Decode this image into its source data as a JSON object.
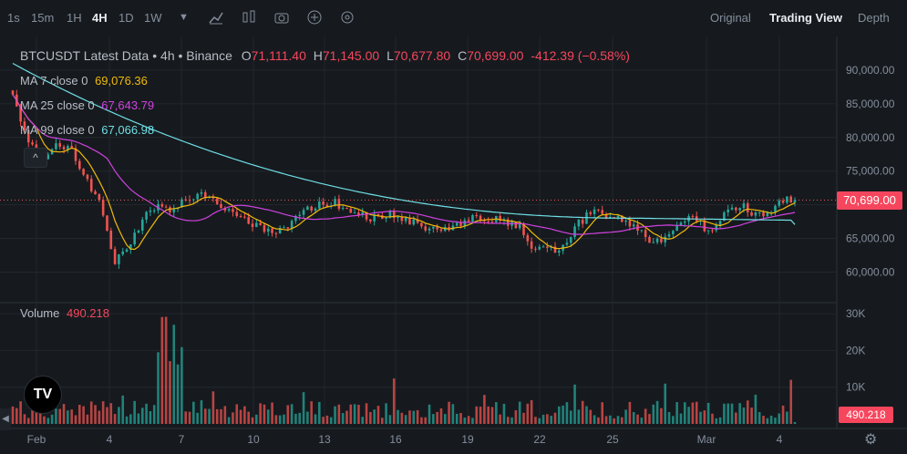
{
  "toolbar": {
    "intervals": [
      "1s",
      "15m",
      "1H",
      "4H",
      "1D",
      "1W"
    ],
    "active_interval": "4H",
    "dropdown_icon": "caret-down-icon",
    "icons": [
      "indicator-icon",
      "layout-icon",
      "camera-icon",
      "add-icon",
      "settings-icon"
    ],
    "views": [
      "Original",
      "Trading View",
      "Depth"
    ],
    "active_view": "Trading View"
  },
  "legend": {
    "title": "BTCUSDT Latest Data • 4h • Binance",
    "o_label": "O",
    "o": "71,111.40",
    "h_label": "H",
    "h": "71,145.00",
    "l_label": "L",
    "l": "70,677.80",
    "c_label": "C",
    "c": "70,699.00",
    "change": "-412.39 (−0.58%)"
  },
  "ma": [
    {
      "label": "MA 7 close 0",
      "value": "69,076.36",
      "color": "#f0b90b"
    },
    {
      "label": "MA 25 close 0",
      "value": "67,643.79",
      "color": "#d042e0"
    },
    {
      "label": "MA 99 close 0",
      "value": "67,066.98",
      "color": "#6fdfe6"
    }
  ],
  "volume": {
    "label": "Volume",
    "value": "490.218"
  },
  "price_badge": "70,699.00",
  "volume_badge": "490.218",
  "logo_text": "TV",
  "colors": {
    "up": "#26a69a",
    "down": "#ef5350",
    "ma7": "#f0b90b",
    "ma25": "#d042e0",
    "ma99": "#6fdfe6"
  },
  "chart_data": {
    "type": "candlestick",
    "price_axis": {
      "ticks": [
        90000,
        85000,
        80000,
        75000,
        70000,
        65000,
        60000
      ],
      "tick_labels": [
        "90,000.00",
        "85,000.00",
        "80,000.00",
        "75,000.00",
        "70,000.00",
        "65,000.00",
        "60,000.00"
      ]
    },
    "volume_axis": {
      "ticks": [
        30000,
        20000,
        10000
      ],
      "tick_labels": [
        "30K",
        "20K",
        "10K"
      ]
    },
    "x_tick_labels": [
      "Feb",
      "4",
      "7",
      "10",
      "13",
      "16",
      "19",
      "22",
      "25",
      "Mar",
      "4"
    ],
    "close_anchor_series": [
      86000,
      80000,
      77000,
      79000,
      78500,
      74000,
      70000,
      61500,
      64000,
      68000,
      70000,
      69500,
      71000,
      71500,
      70500,
      69000,
      68000,
      66500,
      66000,
      67000,
      69000,
      70000,
      70500,
      69500,
      68500,
      68000,
      68500,
      67500,
      67000,
      66500,
      66000,
      67500,
      68000,
      68000,
      67500,
      66500,
      63500,
      63000,
      64000,
      67000,
      69000,
      68500,
      68000,
      66500,
      64500,
      65000,
      67000,
      68000,
      66000,
      68000,
      70000,
      69000,
      68500,
      71000,
      70699
    ],
    "ma7_last": 69076.36,
    "ma25_last": 67643.79,
    "ma99_last": 67066.98,
    "last_close": 70699.0,
    "last_volume": 490.218
  }
}
